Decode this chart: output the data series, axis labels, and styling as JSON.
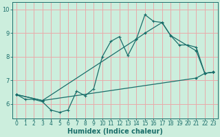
{
  "xlabel": "Humidex (Indice chaleur)",
  "bg_color": "#cceedd",
  "grid_color_major": "#e8aaaa",
  "grid_color_minor": "#e8aaaa",
  "line_color": "#1a6e6a",
  "xlim": [
    -0.5,
    23.5
  ],
  "ylim": [
    5.4,
    10.3
  ],
  "xticks": [
    0,
    1,
    2,
    3,
    4,
    5,
    6,
    7,
    8,
    9,
    10,
    11,
    12,
    13,
    14,
    15,
    16,
    17,
    18,
    19,
    20,
    21,
    22,
    23
  ],
  "yticks": [
    6,
    7,
    8,
    9,
    10
  ],
  "line1_x": [
    0,
    1,
    2,
    3,
    4,
    5,
    6,
    7,
    8,
    9,
    10,
    11,
    12,
    13,
    14,
    15,
    16,
    17,
    18,
    19,
    20,
    21,
    22,
    23
  ],
  "line1_y": [
    6.4,
    6.2,
    6.2,
    6.1,
    5.75,
    5.65,
    5.75,
    6.55,
    6.35,
    6.65,
    8.0,
    8.65,
    8.85,
    8.05,
    8.75,
    9.78,
    9.5,
    9.45,
    8.9,
    8.5,
    8.5,
    8.4,
    7.3,
    7.35
  ],
  "line2_x": [
    0,
    3,
    14,
    15,
    17,
    18,
    21,
    22,
    23
  ],
  "line2_y": [
    6.4,
    6.15,
    8.75,
    9.0,
    9.45,
    8.9,
    8.25,
    7.3,
    7.35
  ],
  "line3_x": [
    0,
    3,
    21,
    22,
    23
  ],
  "line3_y": [
    6.4,
    6.15,
    7.1,
    7.3,
    7.35
  ],
  "marker_size": 3,
  "linewidth": 0.9,
  "xlabel_fontsize": 7,
  "tick_fontsize": 5.5,
  "figsize": [
    3.2,
    2.0
  ],
  "dpi": 100
}
